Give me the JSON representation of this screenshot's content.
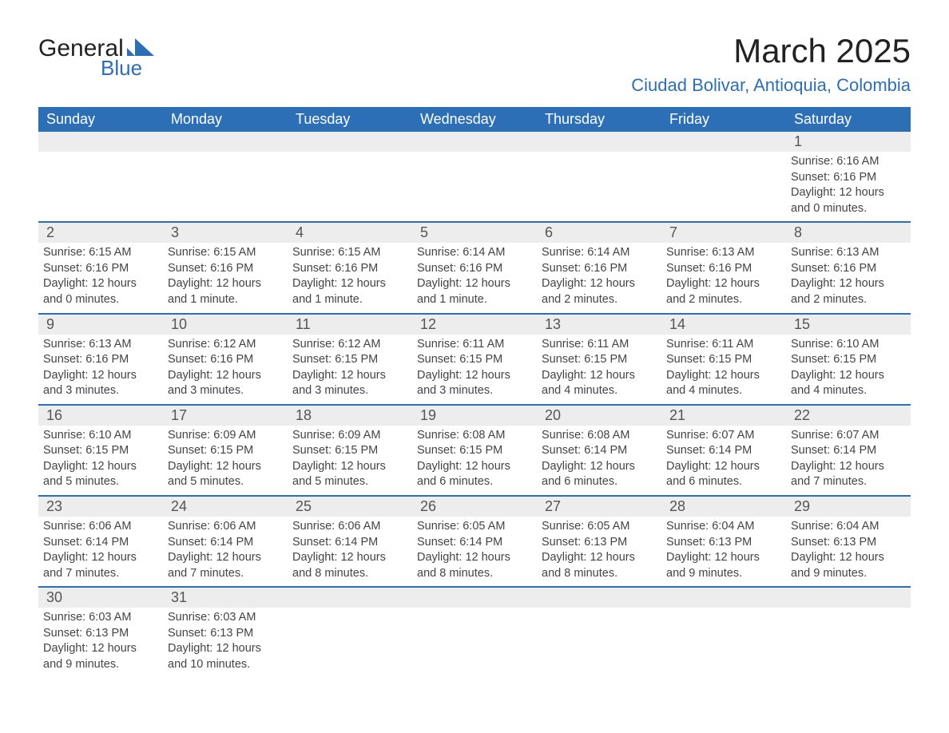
{
  "logo": {
    "line1": "General",
    "line2": "Blue",
    "mark_color": "#2d6fb6"
  },
  "title": {
    "month": "March 2025",
    "location": "Ciudad Bolivar, Antioquia, Colombia"
  },
  "colors": {
    "header_bg": "#2d6fb6",
    "header_text": "#ffffff",
    "daynum_bg": "#ededed",
    "row_border": "#2d6fb6",
    "body_text": "#444444"
  },
  "fonts": {
    "title_size_pt": 32,
    "location_size_pt": 17,
    "dayhdr_size_pt": 14,
    "cell_size_pt": 11
  },
  "day_headers": [
    "Sunday",
    "Monday",
    "Tuesday",
    "Wednesday",
    "Thursday",
    "Friday",
    "Saturday"
  ],
  "weeks": [
    [
      null,
      null,
      null,
      null,
      null,
      null,
      {
        "n": "1",
        "sr": "Sunrise: 6:16 AM",
        "ss": "Sunset: 6:16 PM",
        "dl": "Daylight: 12 hours and 0 minutes."
      }
    ],
    [
      {
        "n": "2",
        "sr": "Sunrise: 6:15 AM",
        "ss": "Sunset: 6:16 PM",
        "dl": "Daylight: 12 hours and 0 minutes."
      },
      {
        "n": "3",
        "sr": "Sunrise: 6:15 AM",
        "ss": "Sunset: 6:16 PM",
        "dl": "Daylight: 12 hours and 1 minute."
      },
      {
        "n": "4",
        "sr": "Sunrise: 6:15 AM",
        "ss": "Sunset: 6:16 PM",
        "dl": "Daylight: 12 hours and 1 minute."
      },
      {
        "n": "5",
        "sr": "Sunrise: 6:14 AM",
        "ss": "Sunset: 6:16 PM",
        "dl": "Daylight: 12 hours and 1 minute."
      },
      {
        "n": "6",
        "sr": "Sunrise: 6:14 AM",
        "ss": "Sunset: 6:16 PM",
        "dl": "Daylight: 12 hours and 2 minutes."
      },
      {
        "n": "7",
        "sr": "Sunrise: 6:13 AM",
        "ss": "Sunset: 6:16 PM",
        "dl": "Daylight: 12 hours and 2 minutes."
      },
      {
        "n": "8",
        "sr": "Sunrise: 6:13 AM",
        "ss": "Sunset: 6:16 PM",
        "dl": "Daylight: 12 hours and 2 minutes."
      }
    ],
    [
      {
        "n": "9",
        "sr": "Sunrise: 6:13 AM",
        "ss": "Sunset: 6:16 PM",
        "dl": "Daylight: 12 hours and 3 minutes."
      },
      {
        "n": "10",
        "sr": "Sunrise: 6:12 AM",
        "ss": "Sunset: 6:16 PM",
        "dl": "Daylight: 12 hours and 3 minutes."
      },
      {
        "n": "11",
        "sr": "Sunrise: 6:12 AM",
        "ss": "Sunset: 6:15 PM",
        "dl": "Daylight: 12 hours and 3 minutes."
      },
      {
        "n": "12",
        "sr": "Sunrise: 6:11 AM",
        "ss": "Sunset: 6:15 PM",
        "dl": "Daylight: 12 hours and 3 minutes."
      },
      {
        "n": "13",
        "sr": "Sunrise: 6:11 AM",
        "ss": "Sunset: 6:15 PM",
        "dl": "Daylight: 12 hours and 4 minutes."
      },
      {
        "n": "14",
        "sr": "Sunrise: 6:11 AM",
        "ss": "Sunset: 6:15 PM",
        "dl": "Daylight: 12 hours and 4 minutes."
      },
      {
        "n": "15",
        "sr": "Sunrise: 6:10 AM",
        "ss": "Sunset: 6:15 PM",
        "dl": "Daylight: 12 hours and 4 minutes."
      }
    ],
    [
      {
        "n": "16",
        "sr": "Sunrise: 6:10 AM",
        "ss": "Sunset: 6:15 PM",
        "dl": "Daylight: 12 hours and 5 minutes."
      },
      {
        "n": "17",
        "sr": "Sunrise: 6:09 AM",
        "ss": "Sunset: 6:15 PM",
        "dl": "Daylight: 12 hours and 5 minutes."
      },
      {
        "n": "18",
        "sr": "Sunrise: 6:09 AM",
        "ss": "Sunset: 6:15 PM",
        "dl": "Daylight: 12 hours and 5 minutes."
      },
      {
        "n": "19",
        "sr": "Sunrise: 6:08 AM",
        "ss": "Sunset: 6:15 PM",
        "dl": "Daylight: 12 hours and 6 minutes."
      },
      {
        "n": "20",
        "sr": "Sunrise: 6:08 AM",
        "ss": "Sunset: 6:14 PM",
        "dl": "Daylight: 12 hours and 6 minutes."
      },
      {
        "n": "21",
        "sr": "Sunrise: 6:07 AM",
        "ss": "Sunset: 6:14 PM",
        "dl": "Daylight: 12 hours and 6 minutes."
      },
      {
        "n": "22",
        "sr": "Sunrise: 6:07 AM",
        "ss": "Sunset: 6:14 PM",
        "dl": "Daylight: 12 hours and 7 minutes."
      }
    ],
    [
      {
        "n": "23",
        "sr": "Sunrise: 6:06 AM",
        "ss": "Sunset: 6:14 PM",
        "dl": "Daylight: 12 hours and 7 minutes."
      },
      {
        "n": "24",
        "sr": "Sunrise: 6:06 AM",
        "ss": "Sunset: 6:14 PM",
        "dl": "Daylight: 12 hours and 7 minutes."
      },
      {
        "n": "25",
        "sr": "Sunrise: 6:06 AM",
        "ss": "Sunset: 6:14 PM",
        "dl": "Daylight: 12 hours and 8 minutes."
      },
      {
        "n": "26",
        "sr": "Sunrise: 6:05 AM",
        "ss": "Sunset: 6:14 PM",
        "dl": "Daylight: 12 hours and 8 minutes."
      },
      {
        "n": "27",
        "sr": "Sunrise: 6:05 AM",
        "ss": "Sunset: 6:13 PM",
        "dl": "Daylight: 12 hours and 8 minutes."
      },
      {
        "n": "28",
        "sr": "Sunrise: 6:04 AM",
        "ss": "Sunset: 6:13 PM",
        "dl": "Daylight: 12 hours and 9 minutes."
      },
      {
        "n": "29",
        "sr": "Sunrise: 6:04 AM",
        "ss": "Sunset: 6:13 PM",
        "dl": "Daylight: 12 hours and 9 minutes."
      }
    ],
    [
      {
        "n": "30",
        "sr": "Sunrise: 6:03 AM",
        "ss": "Sunset: 6:13 PM",
        "dl": "Daylight: 12 hours and 9 minutes."
      },
      {
        "n": "31",
        "sr": "Sunrise: 6:03 AM",
        "ss": "Sunset: 6:13 PM",
        "dl": "Daylight: 12 hours and 10 minutes."
      },
      null,
      null,
      null,
      null,
      null
    ]
  ]
}
